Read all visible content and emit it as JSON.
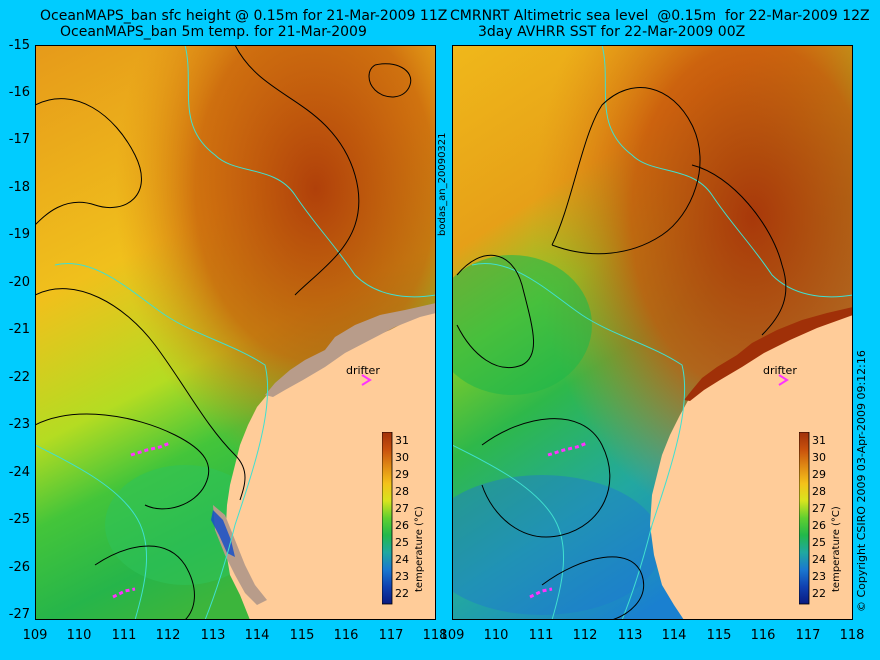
{
  "left_panel": {
    "title_line1": "OceanMAPS_ban sfc height @ 0.15m for 21-Mar-2009 11Z",
    "title_line2": "OceanMAPS_ban 5m temp. for 21-Mar-2009",
    "drifter_label": "drifter",
    "colorbar_label": "temperature (°C)",
    "colorbar_ticks": [
      "31",
      "30",
      "29",
      "28",
      "27",
      "26",
      "25",
      "24",
      "23",
      "22"
    ]
  },
  "right_panel": {
    "title_line1": "CMRNRT Altimetric sea level  @0.15m  for 22-Mar-2009 12Z",
    "title_line2": "3day AVHRR SST for 22-Mar-2009 00Z",
    "drifter_label": "drifter",
    "colorbar_label": "temperature (°C)",
    "colorbar_ticks": [
      "31",
      "30",
      "29",
      "28",
      "27",
      "26",
      "25",
      "24",
      "23",
      "22"
    ]
  },
  "side_label": "bodas_an_20090321",
  "copyright": "© Copyright CSIRO 2009   03-Apr-2009 09:12:16",
  "y_ticks": [
    "-15",
    "-16",
    "-17",
    "-18",
    "-19",
    "-20",
    "-21",
    "-22",
    "-23",
    "-24",
    "-25",
    "-26",
    "-27"
  ],
  "x_ticks_left": [
    "109",
    "110",
    "111",
    "112",
    "113",
    "114",
    "115",
    "116",
    "117",
    "118"
  ],
  "x_ticks_right": [
    "109",
    "110",
    "111",
    "112",
    "113",
    "114",
    "115",
    "116",
    "117",
    "118"
  ],
  "colors": {
    "background": "#00ccff",
    "land": "#ffcc99",
    "coast_land_grey": "#c0a090",
    "contour": "#000000",
    "isobath": "#40e0d0",
    "drifter_marker": "#ff33ff"
  }
}
